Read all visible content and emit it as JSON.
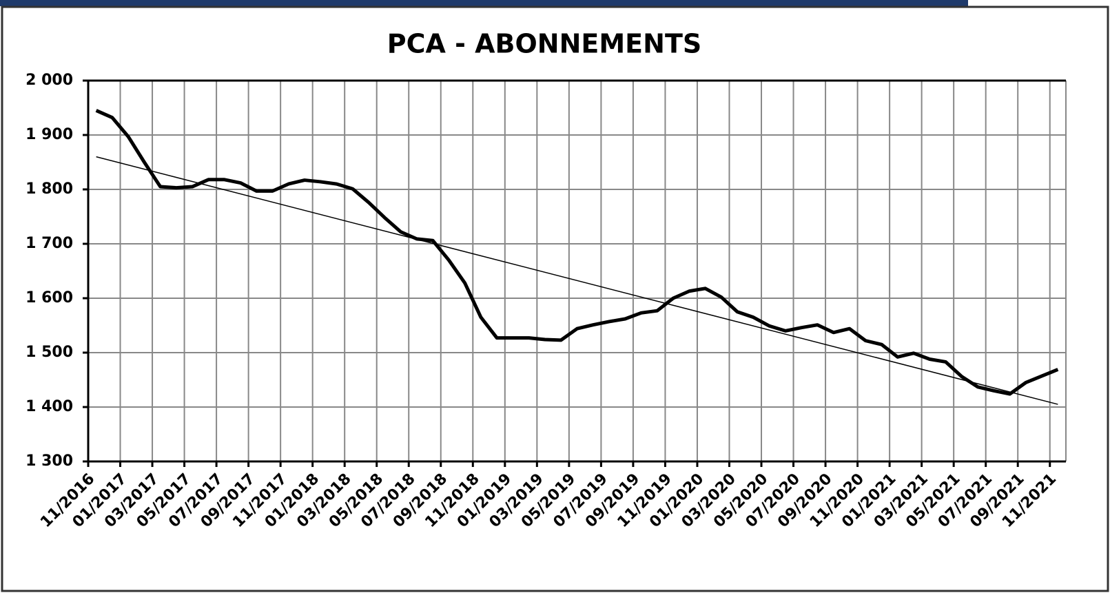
{
  "chart_data": {
    "type": "line",
    "title": "PCA - ABONNEMENTS",
    "categories": [
      "11/2016",
      null,
      "01/2017",
      null,
      "03/2017",
      null,
      "05/2017",
      null,
      "07/2017",
      null,
      "09/2017",
      null,
      "11/2017",
      null,
      "01/2018",
      null,
      "03/2018",
      null,
      "05/2018",
      null,
      "07/2018",
      null,
      "09/2018",
      null,
      "11/2018",
      null,
      "01/2019",
      null,
      "03/2019",
      null,
      "05/2019",
      null,
      "07/2019",
      null,
      "09/2019",
      null,
      "11/2019",
      null,
      "01/2020",
      null,
      "03/2020",
      null,
      "05/2020",
      null,
      "07/2020",
      null,
      "09/2020",
      null,
      "11/2020",
      null,
      "01/2021",
      null,
      "03/2021",
      null,
      "05/2021",
      null,
      "07/2021",
      null,
      "09/2021",
      null,
      "11/2021"
    ],
    "series": [
      {
        "color": "#000000",
        "values": [
          1945,
          1932,
          1897,
          1850,
          1805,
          1803,
          1805,
          1818,
          1818,
          1812,
          1797,
          1797,
          1810,
          1817,
          1814,
          1810,
          1801,
          1776,
          1748,
          1722,
          1709,
          1706,
          1670,
          1628,
          1565,
          1527,
          1527,
          1527,
          1524,
          1523,
          1544,
          1551,
          1557,
          1562,
          1573,
          1577,
          1600,
          1613,
          1618,
          1602,
          1575,
          1565,
          1549,
          1540,
          1546,
          1551,
          1537,
          1544,
          1522,
          1515,
          1492,
          1499,
          1488,
          1483,
          1456,
          1437,
          1430,
          1424,
          1445,
          1457,
          1469
        ]
      }
    ],
    "trendline": [
      1860,
      1405
    ],
    "ylim": [
      1300,
      2000
    ],
    "yticks": [
      {
        "value": 1300,
        "label": "1 300"
      },
      {
        "value": 1400,
        "label": "1 400"
      },
      {
        "value": 1500,
        "label": "1 500"
      },
      {
        "value": 1600,
        "label": "1 600"
      },
      {
        "value": 1700,
        "label": "1 700"
      },
      {
        "value": 1800,
        "label": "1 800"
      },
      {
        "value": 1900,
        "label": "1 900"
      },
      {
        "value": 2000,
        "label": "2 000"
      }
    ],
    "grid": true
  }
}
